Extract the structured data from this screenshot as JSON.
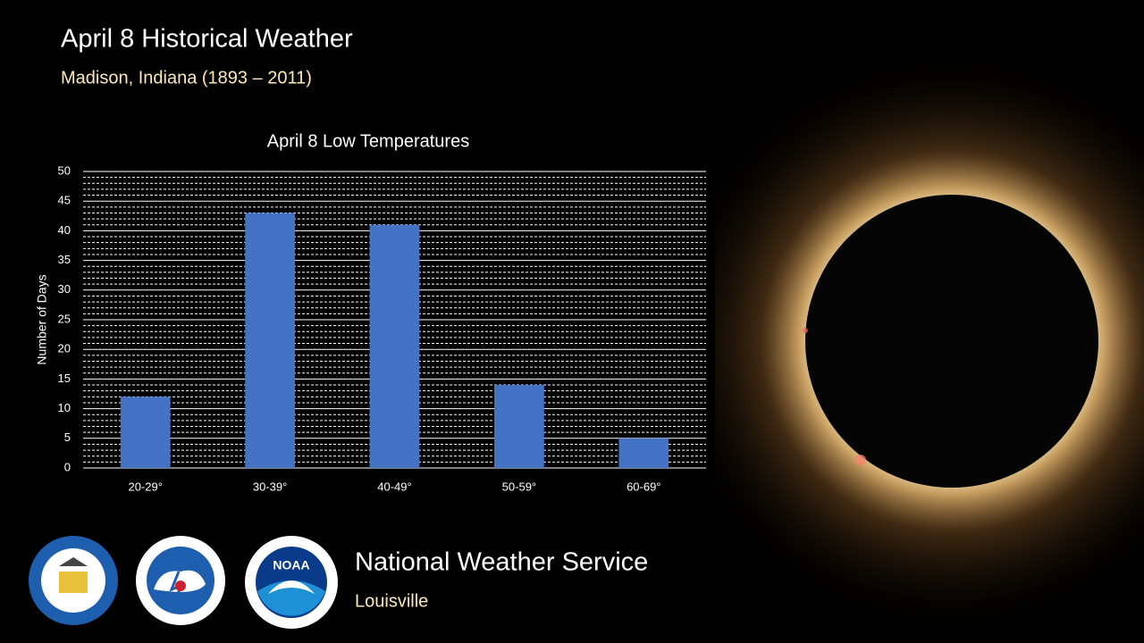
{
  "header": {
    "title": "April 8 Historical Weather",
    "subtitle": "Madison, Indiana (1893 – 2011)"
  },
  "chart_data": {
    "type": "bar",
    "title": "April 8 Low Temperatures",
    "y_label": "Number of Days",
    "categories": [
      "20-29°",
      "30-39°",
      "40-49°",
      "50-59°",
      "60-69°"
    ],
    "values": [
      12,
      43,
      41,
      14,
      5
    ],
    "color": "#4472c4",
    "ylim": [
      0,
      50
    ],
    "yticks": [
      0,
      5,
      10,
      15,
      20,
      25,
      30,
      35,
      40,
      45,
      50
    ],
    "grid": true,
    "minor_grid": true
  },
  "footer": {
    "organization": "National Weather Service",
    "office": "Louisville",
    "logo_text": "NOAA"
  }
}
